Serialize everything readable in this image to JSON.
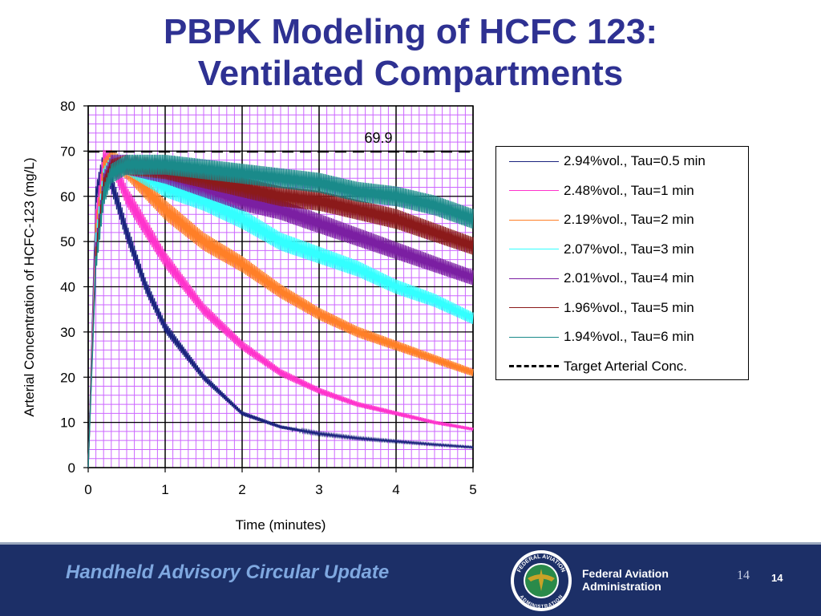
{
  "slide": {
    "title_line1": "PBPK Modeling of HCFC 123:",
    "title_line2": "Ventilated Compartments"
  },
  "chart_data": {
    "type": "line",
    "xlabel": "Time  (minutes)",
    "ylabel": "Arterial Concentration of HCFC-123  (mg/L)",
    "xlim": [
      0,
      5
    ],
    "ylim": [
      0,
      80
    ],
    "x_ticks": [
      "0",
      "1",
      "2",
      "3",
      "4",
      "5"
    ],
    "y_ticks": [
      "0",
      "10",
      "20",
      "30",
      "40",
      "50",
      "60",
      "70",
      "80"
    ],
    "grid": true,
    "legend_position": "right",
    "annotation": "69.9",
    "target_value": 69.9,
    "series": [
      {
        "name": "2.94%vol., Tau=0.5 min",
        "color": "#1a237e",
        "tau": 0.5,
        "x": [
          0,
          0.1,
          0.2,
          0.25,
          0.5,
          0.75,
          1,
          1.5,
          2,
          2.5,
          3,
          3.5,
          4,
          4.5,
          5
        ],
        "values": [
          0,
          60,
          68,
          66,
          52,
          40,
          31,
          20,
          12,
          9,
          7.5,
          6.5,
          5.8,
          5.1,
          4.5
        ]
      },
      {
        "name": "2.48%vol., Tau=1 min",
        "color": "#ff33cc",
        "tau": 1,
        "x": [
          0,
          0.1,
          0.2,
          0.3,
          0.5,
          1,
          1.5,
          2,
          2.5,
          3,
          3.5,
          4,
          4.5,
          5
        ],
        "values": [
          0,
          55,
          68,
          68,
          60,
          46,
          35,
          27,
          21,
          17,
          14,
          12,
          10,
          8.5
        ]
      },
      {
        "name": "2.19%vol., Tau=2 min",
        "color": "#ff7f27",
        "tau": 2,
        "x": [
          0,
          0.1,
          0.2,
          0.3,
          0.5,
          1,
          1.5,
          2,
          2.5,
          3,
          3.5,
          4,
          4.5,
          5
        ],
        "values": [
          0,
          52,
          66,
          68,
          66,
          57,
          50,
          45,
          39,
          34,
          30,
          27,
          24,
          21
        ]
      },
      {
        "name": "2.07%vol., Tau=3 min",
        "color": "#33ffff",
        "tau": 3,
        "x": [
          0,
          0.1,
          0.2,
          0.3,
          0.5,
          1,
          1.5,
          2,
          2.5,
          3,
          3.5,
          4,
          4.5,
          5
        ],
        "values": [
          0,
          50,
          64,
          67,
          67,
          62,
          59,
          55,
          50,
          47,
          44,
          40,
          37,
          33
        ]
      },
      {
        "name": "2.01%vol., Tau=4 min",
        "color": "#7b1fa2",
        "tau": 4,
        "x": [
          0,
          0.1,
          0.2,
          0.3,
          0.5,
          1,
          1.5,
          2,
          2.5,
          3,
          3.5,
          4,
          4.5,
          5
        ],
        "values": [
          0,
          48,
          63,
          67,
          67,
          65,
          62,
          59,
          57,
          54,
          51,
          48,
          45,
          42
        ]
      },
      {
        "name": "1.96%vol., Tau=5 min",
        "color": "#8b1a1a",
        "tau": 5,
        "x": [
          0,
          0.1,
          0.2,
          0.3,
          0.5,
          1,
          1.5,
          2,
          2.5,
          3,
          3.5,
          4,
          4.5,
          5
        ],
        "values": [
          0,
          47,
          62,
          66,
          67,
          66,
          64,
          62,
          60,
          59,
          57,
          55,
          52,
          49
        ]
      },
      {
        "name": "1.94%vol., Tau=6 min",
        "color": "#1a8a8a",
        "tau": 6,
        "x": [
          0,
          0.1,
          0.2,
          0.3,
          0.5,
          1,
          1.5,
          2,
          2.5,
          3,
          3.5,
          4,
          4.5,
          5
        ],
        "values": [
          0,
          45,
          60,
          65,
          67,
          67,
          66,
          65,
          64,
          63,
          61,
          60,
          58,
          55
        ]
      },
      {
        "name": "Target Arterial Conc.",
        "color": "#000000",
        "dashed": true,
        "x": [
          0,
          5
        ],
        "values": [
          69.9,
          69.9
        ]
      }
    ]
  },
  "footer": {
    "title": "Handheld Advisory Circular Update",
    "agency_line1": "Federal Aviation",
    "agency_line2": "Administration",
    "logo_text_top": "FEDERAL AVIATION",
    "logo_text_bottom": "ADMINISTRATION",
    "page_number_1": "14",
    "page_number_2": "14",
    "background_color": "#1c2f67",
    "title_color": "#7fa8e0"
  }
}
